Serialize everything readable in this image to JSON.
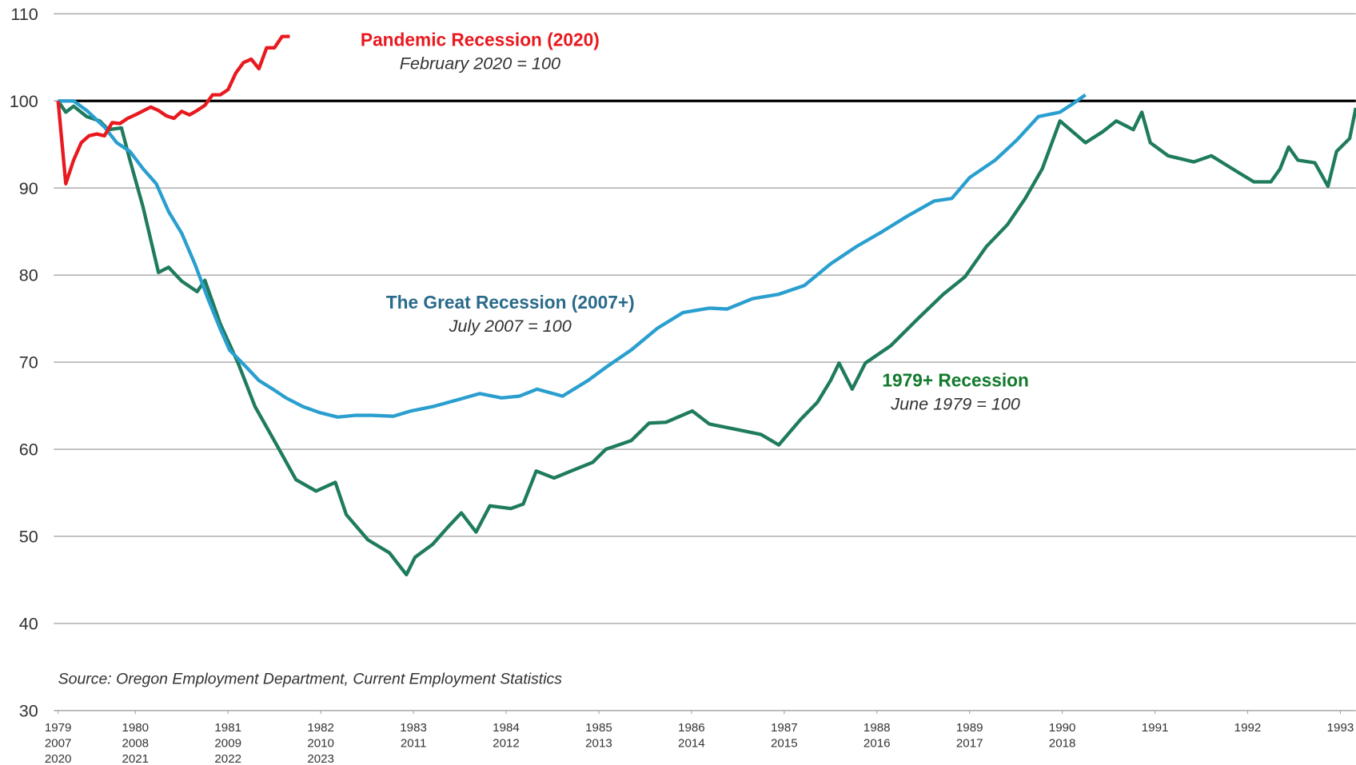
{
  "chart_data": {
    "type": "line",
    "xlim": [
      0,
      168
    ],
    "ylim": [
      30,
      110
    ],
    "yticks": [
      30,
      40,
      50,
      60,
      70,
      80,
      90,
      100,
      110
    ],
    "xticks": [
      {
        "value": 0,
        "label": [
          "1979",
          "2007",
          "2020"
        ]
      },
      {
        "value": 10,
        "label": [
          "1980",
          "2008",
          "2021"
        ]
      },
      {
        "value": 22,
        "label": [
          "1981",
          "2009",
          "2022"
        ]
      },
      {
        "value": 34,
        "label": [
          "1982",
          "2010",
          "2023"
        ]
      },
      {
        "value": 46,
        "label": [
          "1983",
          "2011"
        ]
      },
      {
        "value": 58,
        "label": [
          "1984",
          "2012"
        ]
      },
      {
        "value": 70,
        "label": [
          "1985",
          "2013"
        ]
      },
      {
        "value": 82,
        "label": [
          "1986",
          "2014"
        ]
      },
      {
        "value": 94,
        "label": [
          "1987",
          "2015"
        ]
      },
      {
        "value": 106,
        "label": [
          "1988",
          "2016"
        ]
      },
      {
        "value": 118,
        "label": [
          "1989",
          "2017"
        ]
      },
      {
        "value": 130,
        "label": [
          "1990",
          "2018"
        ]
      },
      {
        "value": 142,
        "label": [
          "1991"
        ]
      },
      {
        "value": 154,
        "label": [
          "1992"
        ]
      },
      {
        "value": 166,
        "label": [
          "1993"
        ]
      }
    ],
    "grid": true,
    "reference_line": 100,
    "series": [
      {
        "name": "1979+ Recession",
        "color": "#1f7b5e",
        "x": [
          0,
          1,
          2,
          3.7,
          5.4,
          6.5,
          8.2,
          9.3,
          11,
          13,
          14.3,
          16,
          18,
          19,
          21,
          23.3,
          25.5,
          28.3,
          30.8,
          33.4,
          35.9,
          37.3,
          40.1,
          42.9,
          45.1,
          46.2,
          48.5,
          50.5,
          52.2,
          54.1,
          55.9,
          58.6,
          60.2,
          61.9,
          64.2,
          66.4,
          69.2,
          70.9,
          74.2,
          76.5,
          78.7,
          82.1,
          84.3,
          87.7,
          91,
          93.3,
          96.1,
          98.3,
          100,
          101.1,
          102.8,
          104.5,
          107.8,
          111.2,
          114.6,
          117.4,
          120.2,
          122.9,
          125.2,
          127.4,
          129.7,
          133,
          135.3,
          137,
          139.2,
          140.3,
          141.4,
          143.7,
          147,
          149.3,
          152.6,
          154.8,
          157,
          158.2,
          159.3,
          160.5,
          162.7,
          164.4,
          165.5,
          167.2,
          168
        ],
        "values": [
          100,
          98.7,
          99.4,
          98.2,
          97.7,
          96.7,
          96.9,
          93.2,
          87.8,
          80.3,
          80.9,
          79.3,
          78.1,
          79.4,
          74.4,
          69.9,
          64.9,
          60.5,
          56.5,
          55.2,
          56.2,
          52.5,
          49.6,
          48.1,
          45.6,
          47.6,
          49.1,
          51.1,
          52.7,
          50.5,
          53.5,
          53.2,
          53.7,
          57.5,
          56.7,
          57.5,
          58.5,
          60,
          61,
          63,
          63.1,
          64.4,
          62.9,
          62.3,
          61.7,
          60.5,
          63.4,
          65.4,
          67.9,
          69.9,
          66.9,
          69.9,
          71.9,
          74.9,
          77.8,
          79.8,
          83.3,
          85.8,
          88.8,
          92.2,
          97.7,
          95.2,
          96.5,
          97.7,
          96.7,
          98.7,
          95.2,
          93.7,
          93,
          93.7,
          91.9,
          90.7,
          90.7,
          92.2,
          94.7,
          93.2,
          92.9,
          90.2,
          94.2,
          95.7,
          99.2
        ]
      },
      {
        "name": "The Great Recession (2007+)",
        "color": "#2a9fcf",
        "x": [
          0,
          2,
          3.7,
          6,
          7.6,
          9.3,
          11,
          12.7,
          14.3,
          16,
          17.7,
          19.4,
          21,
          22.2,
          24.4,
          26,
          27.8,
          29.5,
          31.7,
          33.9,
          36.2,
          38.4,
          40.6,
          43.4,
          45.7,
          48.5,
          51.8,
          54.6,
          57.4,
          59.7,
          62,
          65.3,
          68.6,
          70.9,
          74.2,
          77.6,
          80.9,
          84.3,
          86.6,
          89.9,
          93.3,
          96.6,
          100,
          103.4,
          106.7,
          110,
          113.4,
          115.7,
          118,
          121.3,
          124.1,
          126.9,
          129.7,
          131.4,
          133
        ],
        "values": [
          100,
          100,
          98.9,
          97,
          95.2,
          94.2,
          92.2,
          90.5,
          87.3,
          84.8,
          81.3,
          77.3,
          73.8,
          71.4,
          69.4,
          67.9,
          66.9,
          65.9,
          64.9,
          64.2,
          63.7,
          63.9,
          63.9,
          63.8,
          64.4,
          64.9,
          65.7,
          66.4,
          65.9,
          66.1,
          66.9,
          66.1,
          67.9,
          69.4,
          71.4,
          73.9,
          75.7,
          76.2,
          76.1,
          77.3,
          77.8,
          78.8,
          81.3,
          83.3,
          85,
          86.8,
          88.5,
          88.8,
          91.2,
          93.2,
          95.5,
          98.2,
          98.7,
          99.7,
          100.7
        ]
      },
      {
        "name": "Pandemic Recession (2020)",
        "color": "#e8191f",
        "x": [
          0,
          1,
          2,
          3,
          4,
          5,
          6,
          7,
          8,
          9,
          10,
          12,
          13,
          14,
          15,
          16,
          17,
          18,
          19,
          20,
          21,
          22,
          23,
          24,
          25,
          26,
          27,
          28,
          29,
          30
        ],
        "values": [
          100,
          90.5,
          93.2,
          95.2,
          96,
          96.2,
          96,
          97.5,
          97.4,
          98,
          98.4,
          99.3,
          98.9,
          98.3,
          98,
          98.8,
          98.4,
          98.9,
          99.5,
          100.7,
          100.7,
          101.3,
          103.2,
          104.4,
          104.8,
          103.7,
          106.1,
          106.1,
          107.4,
          107.4
        ]
      }
    ],
    "annotations": [
      {
        "title": "Pandemic Recession (2020)",
        "subtitle": "February 2020 = 100",
        "color": "#e8191f"
      },
      {
        "title": "The Great Recession (2007+)",
        "subtitle": "July 2007 = 100",
        "color": "#2a6a8a"
      },
      {
        "title": "1979+ Recession",
        "subtitle": "June 1979 = 100",
        "color": "#127a2e"
      }
    ],
    "source": "Source: Oregon Employment Department, Current Employment Statistics"
  }
}
